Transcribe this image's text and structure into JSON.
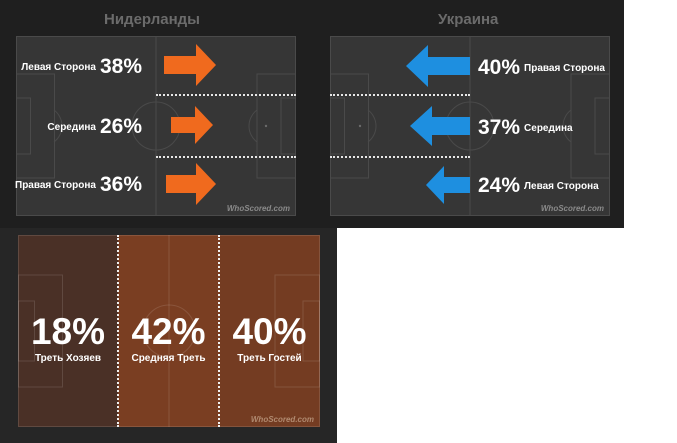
{
  "left_team": {
    "name": "Нидерланды",
    "rows": [
      {
        "label": "Левая Сторона",
        "value": "38%"
      },
      {
        "label": "Середина",
        "value": "26%"
      },
      {
        "label": "Правая Сторона",
        "value": "36%"
      }
    ],
    "arrow_color": "#f06a1e"
  },
  "right_team": {
    "name": "Украина",
    "rows": [
      {
        "label": "Правая Сторона",
        "value": "40%"
      },
      {
        "label": "Середина",
        "value": "37%"
      },
      {
        "label": "Левая Сторона",
        "value": "24%"
      }
    ],
    "arrow_color": "#1e8fe0"
  },
  "thirds": [
    {
      "label": "Треть Хозяев",
      "value": "18%",
      "fill_color": "#4a3026"
    },
    {
      "label": "Средняя Треть",
      "value": "42%",
      "fill_color": "#7a3e22"
    },
    {
      "label": "Треть Гостей",
      "value": "40%",
      "fill_color": "#743c22"
    }
  ],
  "watermark": "WhoScored.com"
}
